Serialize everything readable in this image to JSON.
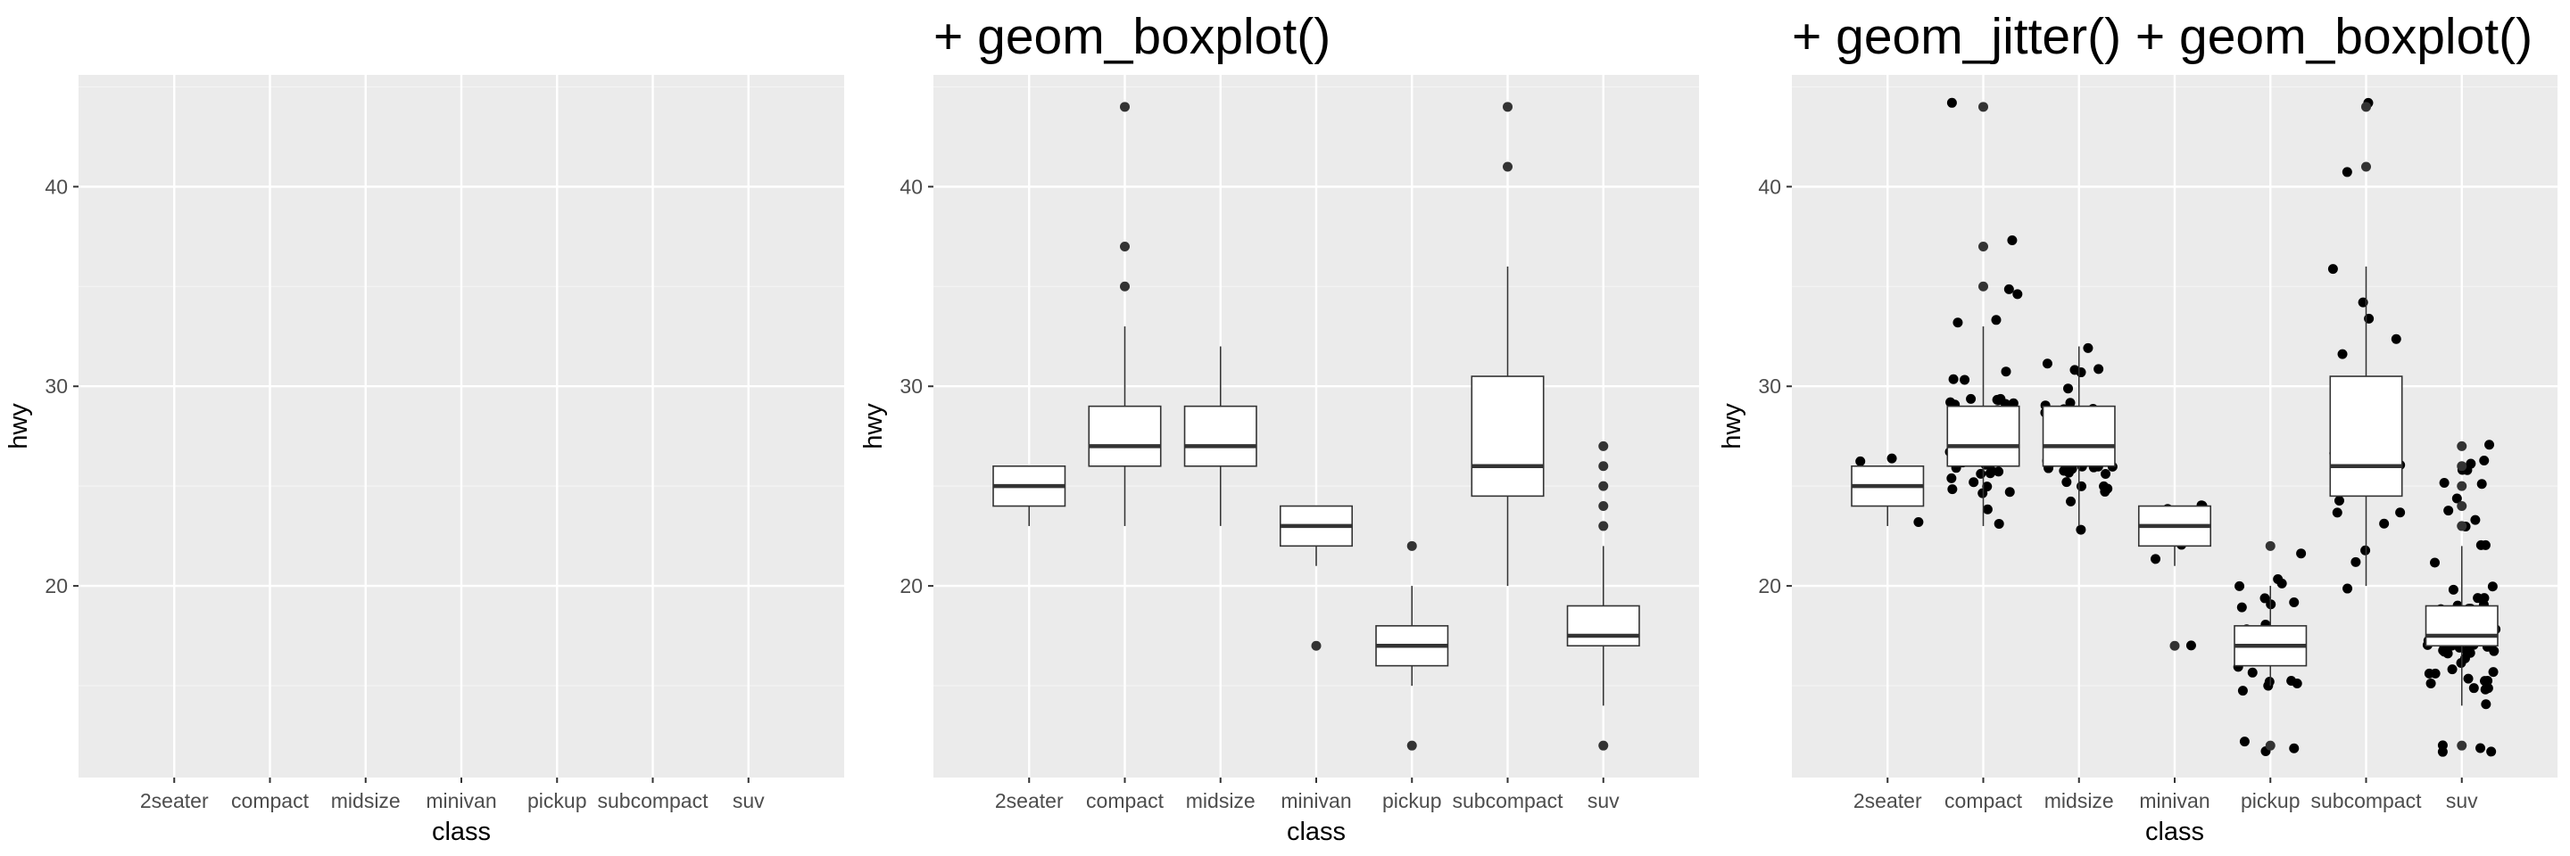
{
  "chart_data": [
    {
      "type": "empty",
      "title": "",
      "xlabel": "class",
      "ylabel": "hwy",
      "categories": [
        "2seater",
        "compact",
        "midsize",
        "minivan",
        "pickup",
        "subcompact",
        "suv"
      ],
      "yticks": [
        20,
        30,
        40
      ],
      "ylim": [
        10.4,
        45.6
      ],
      "grid": true
    },
    {
      "type": "boxplot",
      "title": "+ geom_boxplot()",
      "xlabel": "class",
      "ylabel": "hwy",
      "categories": [
        "2seater",
        "compact",
        "midsize",
        "minivan",
        "pickup",
        "subcompact",
        "suv"
      ],
      "yticks": [
        20,
        30,
        40
      ],
      "ylim": [
        10.4,
        45.6
      ],
      "grid": true,
      "boxes": [
        {
          "lower_whisker": 23,
          "q1": 24,
          "median": 25,
          "q3": 26,
          "upper_whisker": 26,
          "outliers": []
        },
        {
          "lower_whisker": 23,
          "q1": 26,
          "median": 27,
          "q3": 29,
          "upper_whisker": 33,
          "outliers": [
            35,
            37,
            44
          ]
        },
        {
          "lower_whisker": 23,
          "q1": 26,
          "median": 27,
          "q3": 29,
          "upper_whisker": 32,
          "outliers": []
        },
        {
          "lower_whisker": 21,
          "q1": 22,
          "median": 23,
          "q3": 24,
          "upper_whisker": 24,
          "outliers": [
            17
          ]
        },
        {
          "lower_whisker": 15,
          "q1": 16,
          "median": 17,
          "q3": 18,
          "upper_whisker": 20,
          "outliers": [
            12,
            22
          ]
        },
        {
          "lower_whisker": 20,
          "q1": 24.5,
          "median": 26,
          "q3": 30.5,
          "upper_whisker": 36,
          "outliers": [
            41,
            44
          ]
        },
        {
          "lower_whisker": 14,
          "q1": 17,
          "median": 17.5,
          "q3": 19,
          "upper_whisker": 22,
          "outliers": [
            12,
            23,
            24,
            25,
            26,
            27
          ]
        }
      ]
    },
    {
      "type": "boxplot",
      "title": "+ geom_jitter() + geom_boxplot()",
      "xlabel": "class",
      "ylabel": "hwy",
      "categories": [
        "2seater",
        "compact",
        "midsize",
        "minivan",
        "pickup",
        "subcompact",
        "suv"
      ],
      "yticks": [
        20,
        30,
        40
      ],
      "ylim": [
        10.4,
        45.6
      ],
      "grid": true,
      "boxes": [
        {
          "lower_whisker": 23,
          "q1": 24,
          "median": 25,
          "q3": 26,
          "upper_whisker": 26,
          "outliers": []
        },
        {
          "lower_whisker": 23,
          "q1": 26,
          "median": 27,
          "q3": 29,
          "upper_whisker": 33,
          "outliers": [
            35,
            37,
            44
          ]
        },
        {
          "lower_whisker": 23,
          "q1": 26,
          "median": 27,
          "q3": 29,
          "upper_whisker": 32,
          "outliers": []
        },
        {
          "lower_whisker": 21,
          "q1": 22,
          "median": 23,
          "q3": 24,
          "upper_whisker": 24,
          "outliers": [
            17
          ]
        },
        {
          "lower_whisker": 15,
          "q1": 16,
          "median": 17,
          "q3": 18,
          "upper_whisker": 20,
          "outliers": [
            12,
            22
          ]
        },
        {
          "lower_whisker": 20,
          "q1": 24.5,
          "median": 26,
          "q3": 30.5,
          "upper_whisker": 36,
          "outliers": [
            41,
            44
          ]
        },
        {
          "lower_whisker": 14,
          "q1": 17,
          "median": 17.5,
          "q3": 19,
          "upper_whisker": 22,
          "outliers": [
            12,
            23,
            24,
            25,
            26,
            27
          ]
        }
      ],
      "points": [
        {
          "category": "2seater",
          "hwy": [
            26,
            25,
            26,
            24,
            23
          ]
        },
        {
          "category": "compact",
          "hwy": [
            29,
            29,
            31,
            30,
            26,
            26,
            27,
            26,
            25,
            28,
            27,
            25,
            25,
            25,
            25,
            24,
            25,
            23,
            29,
            26,
            26,
            29,
            29,
            28,
            29,
            26,
            29,
            29,
            27,
            28,
            29,
            27,
            29,
            33,
            35,
            37,
            35,
            44,
            29,
            29,
            28,
            29,
            26,
            27,
            30,
            33,
            29
          ]
        },
        {
          "category": "midsize",
          "hwy": [
            26,
            25,
            28,
            27,
            25,
            25,
            23,
            24,
            26,
            26,
            26,
            27,
            26,
            26,
            28,
            27,
            26,
            29,
            31,
            31,
            26,
            26,
            27,
            30,
            31,
            29,
            26,
            29,
            29,
            32,
            27,
            26,
            29,
            31,
            26,
            26,
            25,
            25,
            28,
            29,
            26
          ]
        },
        {
          "category": "minivan",
          "hwy": [
            24,
            24,
            22,
            22,
            24,
            24,
            17,
            22,
            21,
            23,
            23
          ]
        },
        {
          "category": "pickup",
          "hwy": [
            15,
            16,
            17,
            15,
            17,
            16,
            15,
            17,
            17,
            12,
            12,
            12,
            15,
            16,
            17,
            15,
            17,
            18,
            17,
            17,
            19,
            19,
            17,
            18,
            19,
            17,
            18,
            19,
            17,
            20,
            20,
            20,
            22
          ]
        },
        {
          "category": "subcompact",
          "hwy": [
            26,
            25,
            26,
            24,
            24,
            21,
            22,
            23,
            44,
            41,
            29,
            26,
            28,
            29,
            29,
            29,
            28,
            29,
            26,
            26,
            26,
            32,
            33,
            32,
            36,
            34,
            29,
            24,
            27,
            20,
            26,
            26,
            25,
            27,
            27
          ]
        },
        {
          "category": "suv",
          "hwy": [
            20,
            15,
            20,
            17,
            17,
            26,
            23,
            26,
            25,
            24,
            19,
            14,
            15,
            17,
            27,
            19,
            19,
            17,
            17,
            17,
            15,
            17,
            18,
            12,
            17,
            19,
            17,
            12,
            17,
            16,
            18,
            15,
            16,
            12,
            17,
            17,
            16,
            12,
            15,
            16,
            17,
            15,
            17,
            17,
            18,
            17,
            19,
            17,
            19,
            19,
            17,
            17,
            17,
            16,
            16,
            17,
            15,
            17,
            26,
            25,
            26,
            24,
            21,
            22,
            23,
            22
          ]
        }
      ]
    }
  ]
}
